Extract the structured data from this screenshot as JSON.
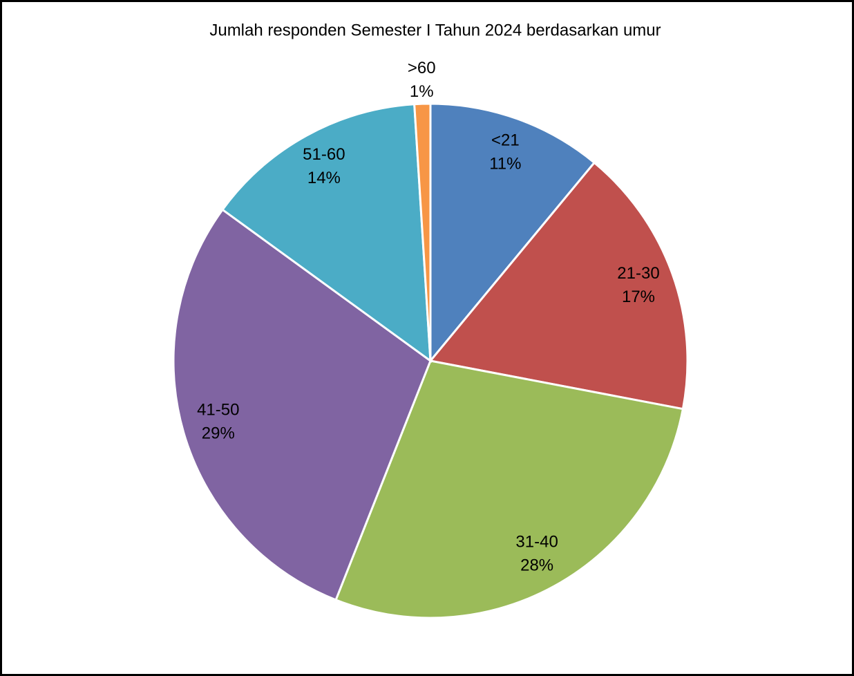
{
  "chart_data": {
    "type": "pie",
    "title": "Jumlah responden Semester I Tahun 2024 berdasarkan umur",
    "categories": [
      "<21",
      "21-30",
      "31-40",
      "41-50",
      "51-60",
      ">60"
    ],
    "values": [
      11,
      17,
      28,
      29,
      14,
      1
    ],
    "value_labels": [
      "11%",
      "17%",
      "28%",
      "29%",
      "14%",
      "1%"
    ],
    "colors": [
      "#4f81bd",
      "#c0504d",
      "#9bbb59",
      "#8064a2",
      "#4bacc6",
      "#f79646"
    ]
  }
}
